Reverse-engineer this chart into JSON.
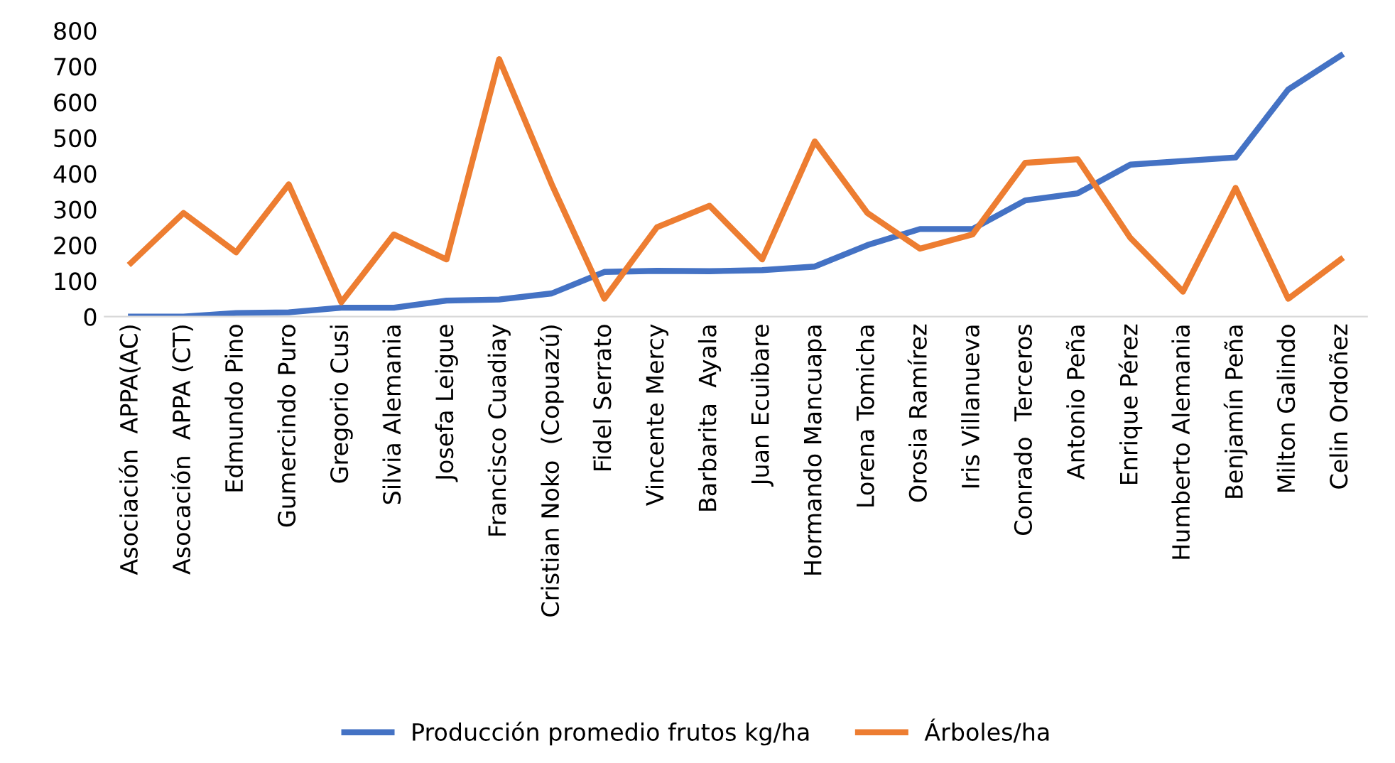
{
  "chart_data": {
    "type": "line",
    "categories": [
      "Asociación  APPA(AC)",
      "Asocación  APPA (CT)",
      "Edmundo Pino",
      "Gumercindo Puro",
      "Gregorio Cusi",
      "Silvia Alemania",
      "Josefa Leigue",
      "Francisco Cuadiay",
      "Cristian Noko  (Copuazú)",
      "Fidel Serrato",
      "Vincente Mercy",
      "Barbarita  Ayala",
      "Juan Ecuibare",
      "Hormando Mancuapa",
      "Lorena Tomicha",
      "Orosia Ramírez",
      "Iris Villanueva",
      "Conrado  Terceros",
      "Antonio Peña",
      "Enrique Pérez",
      "Humberto Alemania",
      "Benjamín Peña",
      "Milton Galindo",
      "Celin Ordoñez"
    ],
    "series": [
      {
        "name": "Producción promedio frutos kg/ha",
        "color": "#4472c4",
        "values": [
          0,
          0,
          10,
          12,
          25,
          25,
          45,
          48,
          65,
          125,
          128,
          127,
          130,
          140,
          200,
          245,
          245,
          325,
          345,
          425,
          435,
          445,
          635,
          730
        ]
      },
      {
        "name": "Árboles/ha",
        "color": "#ed7d31",
        "values": [
          150,
          290,
          180,
          370,
          40,
          230,
          160,
          720,
          370,
          50,
          250,
          310,
          160,
          490,
          290,
          190,
          230,
          430,
          440,
          220,
          70,
          360,
          50,
          160
        ]
      }
    ],
    "ylim": [
      0,
      800
    ],
    "yticks": [
      0,
      100,
      200,
      300,
      400,
      500,
      600,
      700,
      800
    ],
    "grid": false,
    "legend": "bottom",
    "marker": "none",
    "line_style": "solid"
  }
}
